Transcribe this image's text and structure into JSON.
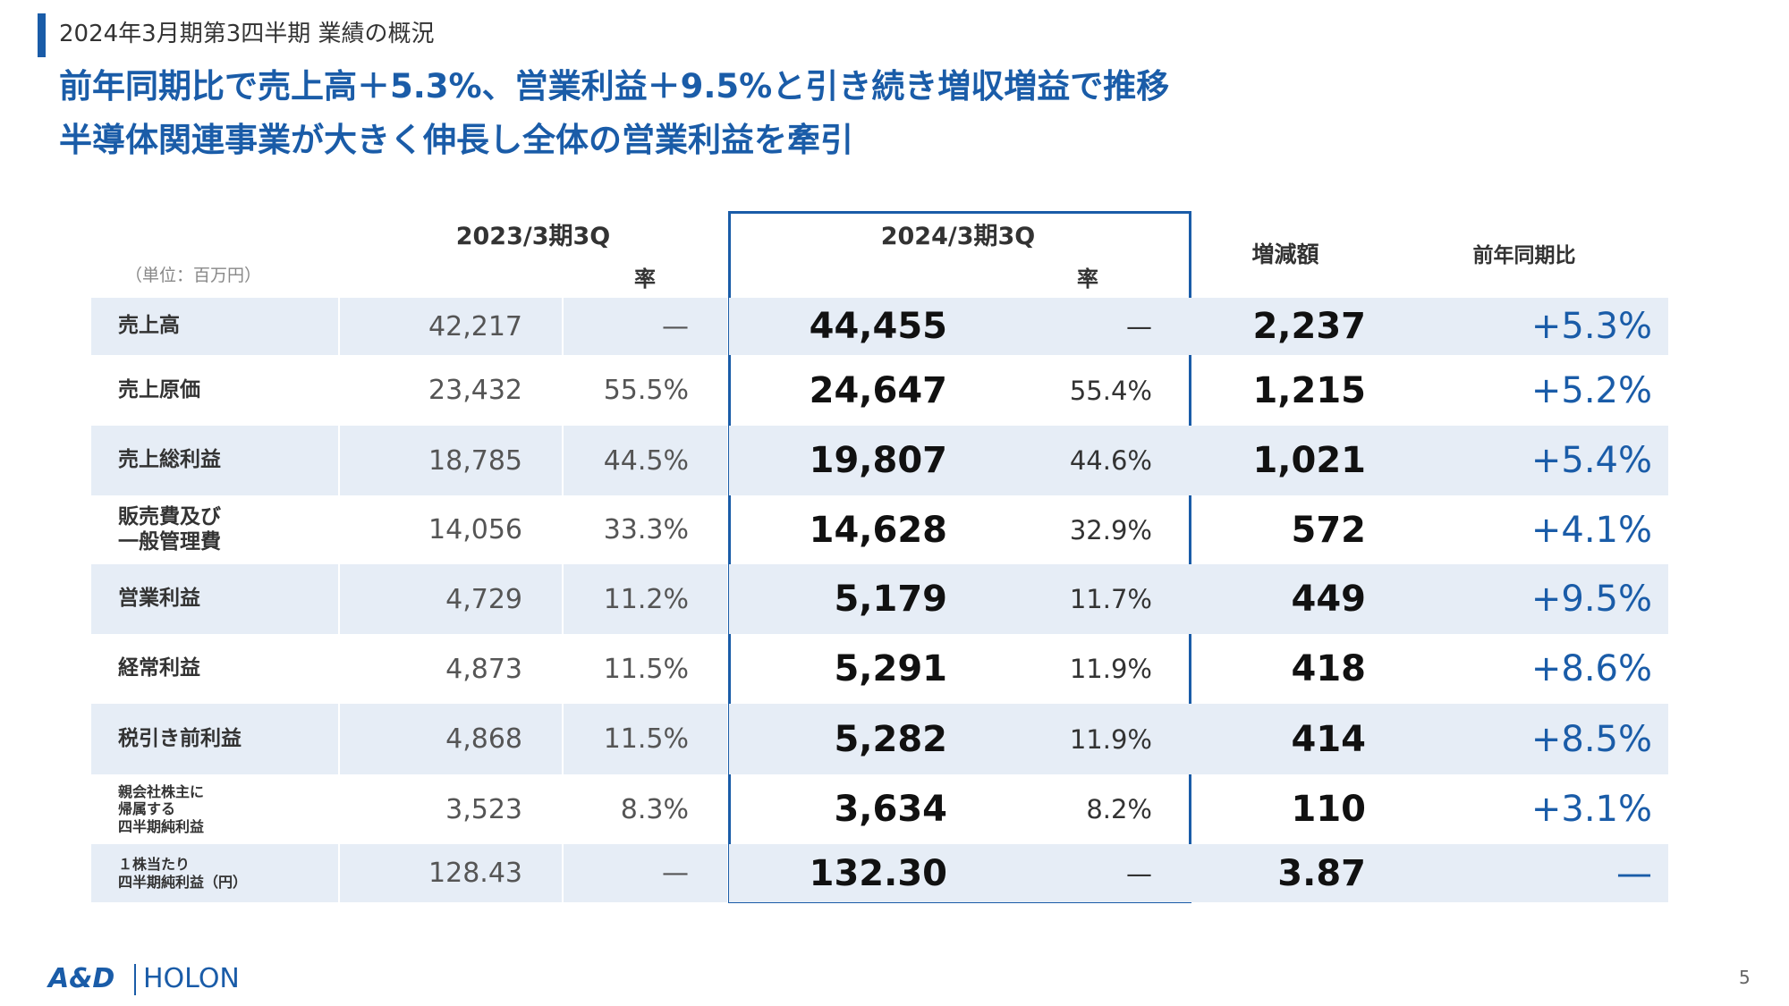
{
  "header": {
    "title": "2024年3月期第3四半期 業績の概況",
    "headlines": [
      "前年同期比で売上高＋5.3%、営業利益＋9.5%と引き続き増収増益で推移",
      "半導体関連事業が大きく伸長し全体の営業利益を牽引"
    ]
  },
  "table": {
    "unit": "（単位：百万円）",
    "columns": [
      "2023/3期3Q",
      "率",
      "2024/3期3Q",
      "率",
      "増減額",
      "前年同期比"
    ],
    "rows": [
      [
        "売上高",
        "42,217",
        "—",
        "44,455",
        "—",
        "2,237",
        "+5.3%"
      ],
      [
        "売上原価",
        "23,432",
        "55.5%",
        "24,647",
        "55.4%",
        "1,215",
        "+5.2%"
      ],
      [
        "売上総利益",
        "18,785",
        "44.5%",
        "19,807",
        "44.6%",
        "1,021",
        "+5.4%"
      ],
      [
        "販売費及び\n一般管理費",
        "14,056",
        "33.3%",
        "14,628",
        "32.9%",
        "572",
        "+4.1%"
      ],
      [
        "営業利益",
        "4,729",
        "11.2%",
        "5,179",
        "11.7%",
        "449",
        "+9.5%"
      ],
      [
        "経常利益",
        "4,873",
        "11.5%",
        "5,291",
        "11.9%",
        "418",
        "+8.6%"
      ],
      [
        "税引き前利益",
        "4,868",
        "11.5%",
        "5,282",
        "11.9%",
        "414",
        "+8.5%"
      ],
      [
        "親会社株主に\n帰属する\n四半期純利益",
        "3,523",
        "8.3%",
        "3,634",
        "8.2%",
        "110",
        "+3.1%"
      ],
      [
        "１株当たり\n四半期純利益（円）",
        "128.43",
        "—",
        "132.30",
        "—",
        "3.87",
        "—"
      ]
    ]
  },
  "footer": {
    "logo": [
      "A&D",
      "HOLON"
    ],
    "page": "5"
  }
}
